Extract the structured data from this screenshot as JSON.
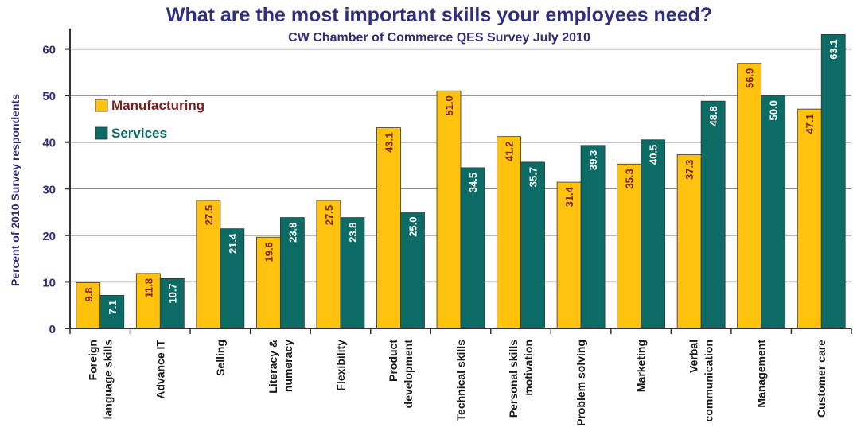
{
  "chart_data": {
    "type": "bar",
    "title": "What are the most important skills your employees need?",
    "subtitle": "CW Chamber of Commerce QES Survey July 2010",
    "xlabel": "",
    "ylabel": "Percent of 2010 Survey respondents",
    "ylim": [
      0,
      63
    ],
    "yticks": [
      0,
      10,
      20,
      30,
      40,
      50,
      60
    ],
    "grid": true,
    "legend": "top-left",
    "categories": [
      [
        "Foreign",
        "language skills"
      ],
      [
        "Advance IT"
      ],
      [
        "Selling"
      ],
      [
        "Literacy &",
        "numeracy"
      ],
      [
        "Flexibility"
      ],
      [
        "Product",
        "development"
      ],
      [
        "Technical skills"
      ],
      [
        "Personal skills",
        "motivation"
      ],
      [
        "Problem solving"
      ],
      [
        "Marketing"
      ],
      [
        "Verbal",
        "communication"
      ],
      [
        "Management"
      ],
      [
        "Customer care"
      ]
    ],
    "series": [
      {
        "name": "Manufacturing",
        "color": "#ffc20e",
        "label_color": "#7a1f1f",
        "values": [
          9.8,
          11.8,
          27.5,
          19.6,
          27.5,
          43.1,
          51.0,
          41.2,
          31.4,
          35.3,
          37.3,
          56.9,
          47.1
        ],
        "labels": [
          "9.8",
          "11.8",
          "27.5",
          "19.6",
          "27.5",
          "43.1",
          "51.0",
          "41.2",
          "31.4",
          "35.3",
          "37.3",
          "56.9",
          "47.1"
        ]
      },
      {
        "name": "Services",
        "color": "#0d6b66",
        "label_color": "#ffffff",
        "values": [
          7.1,
          10.7,
          21.4,
          23.8,
          23.8,
          25.0,
          34.5,
          35.7,
          39.3,
          40.5,
          48.8,
          50.0,
          63.1
        ],
        "labels": [
          "7.1",
          "10.7",
          "21.4",
          "23.8",
          "23.8",
          "25.0",
          "34.5",
          "35.7",
          "39.3",
          "40.5",
          "48.8",
          "50.0",
          "63.1"
        ]
      }
    ]
  }
}
